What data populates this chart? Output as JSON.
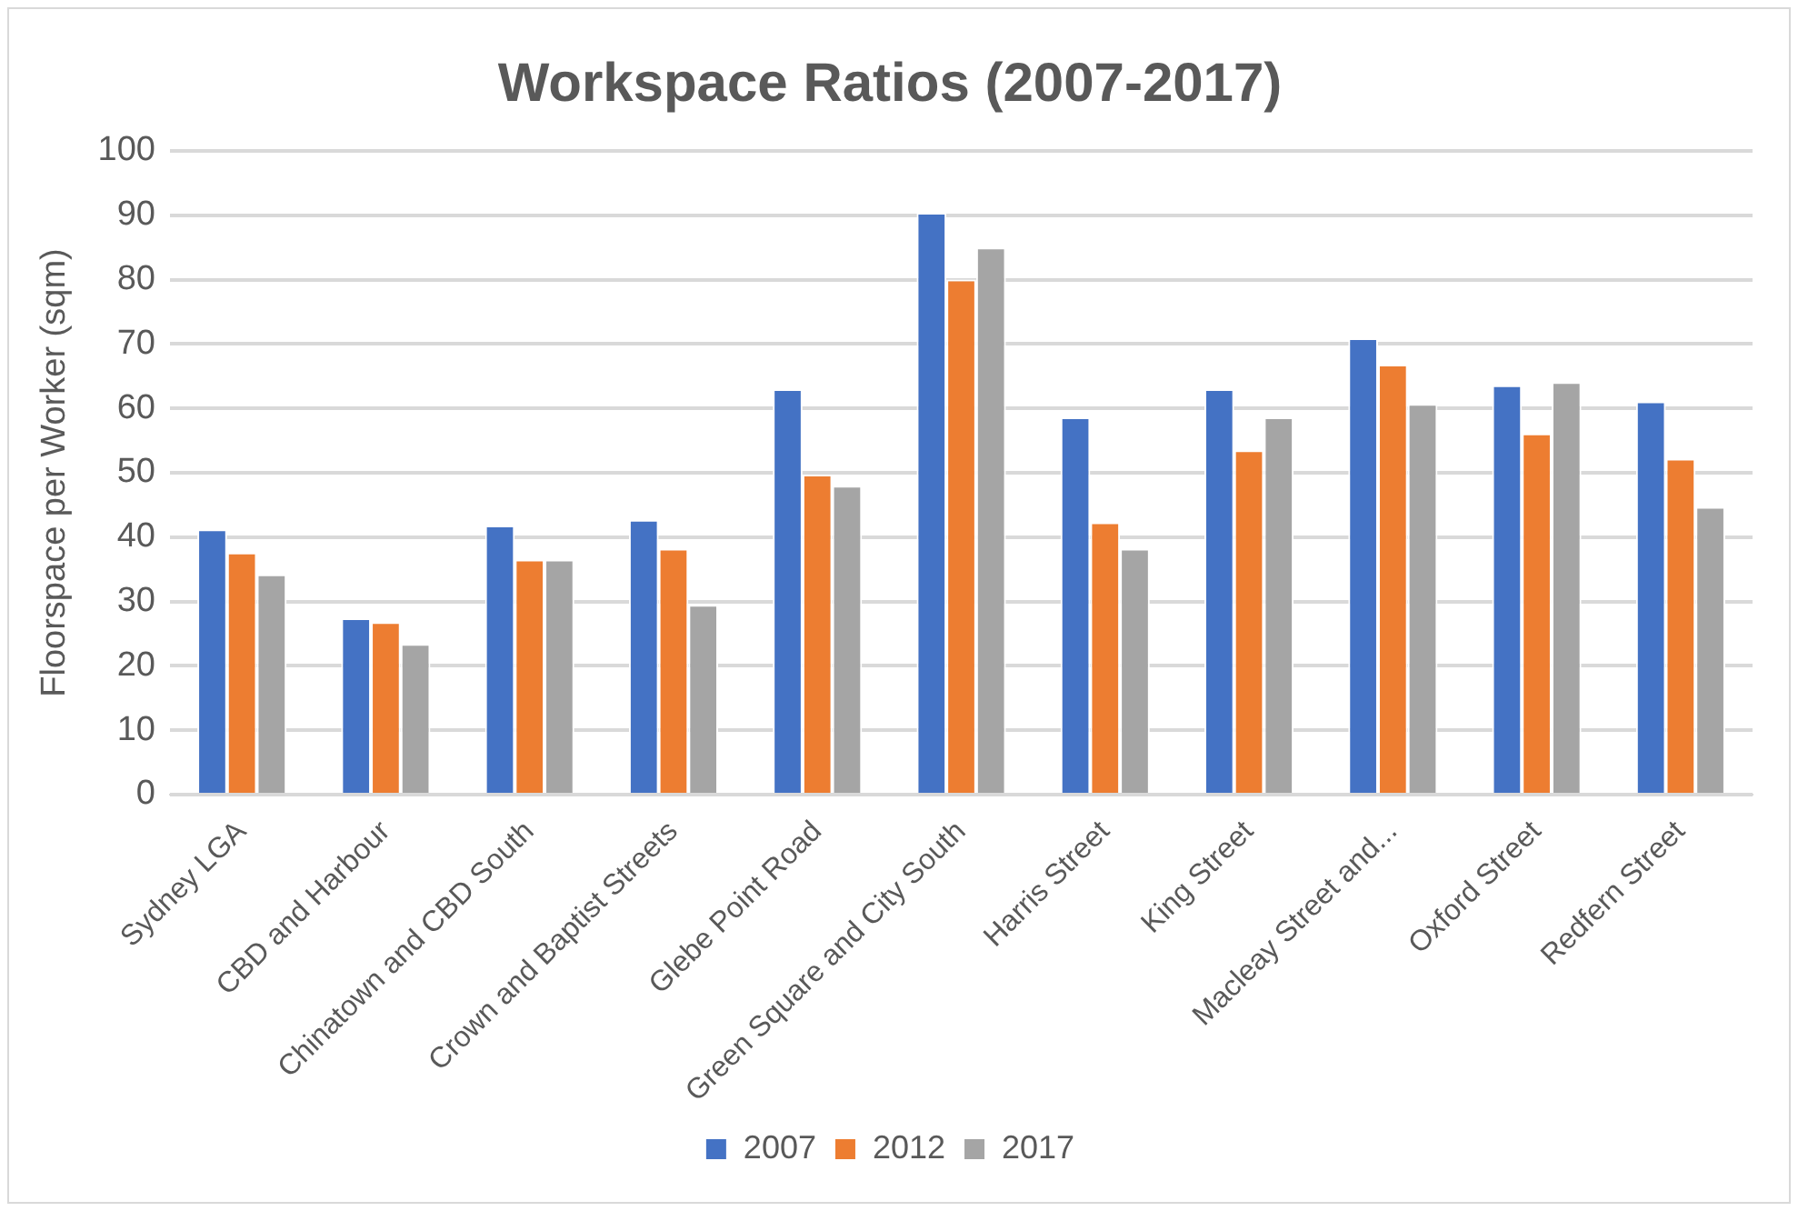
{
  "chart_data": {
    "type": "bar",
    "title": "Workspace Ratios (2007-2017)",
    "ylabel": "Floorspace per Worker (sqm)",
    "categories": [
      "Sydney LGA",
      "CBD and Harbour",
      "Chinatown and CBD South",
      "Crown and Baptist Streets",
      "Glebe Point Road",
      "Green Square and City South",
      "Harris Street",
      "King Street",
      "Macleay Street and...",
      "Oxford Street",
      "Redfern Street"
    ],
    "series": [
      {
        "name": "2007",
        "color": "#4472c4",
        "values": [
          41.2,
          27.4,
          41.8,
          42.7,
          63,
          90.4,
          58.6,
          63,
          70.9,
          63.6,
          61.1
        ]
      },
      {
        "name": "2012",
        "color": "#ed7d31",
        "values": [
          37.6,
          26.8,
          36.5,
          38.2,
          49.7,
          80,
          42.3,
          53.5,
          66.8,
          56.1,
          52.2
        ]
      },
      {
        "name": "2017",
        "color": "#a5a5a5",
        "values": [
          34.2,
          23.4,
          36.5,
          29.5,
          48,
          85,
          38.2,
          58.6,
          60.7,
          64.1,
          44.7
        ]
      }
    ],
    "ylim": [
      0,
      100
    ],
    "yticks": [
      0,
      10,
      20,
      30,
      40,
      50,
      60,
      70,
      80,
      90,
      100
    ],
    "grid": "y",
    "legend": "bottom"
  }
}
